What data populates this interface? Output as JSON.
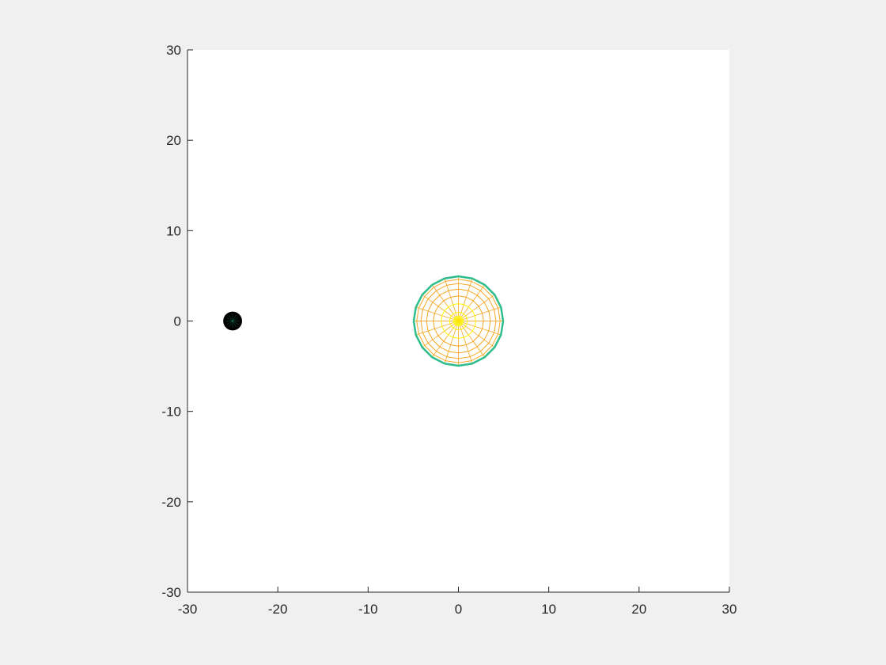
{
  "chart_data": {
    "type": "scatter",
    "title": "",
    "xlabel": "",
    "ylabel": "",
    "xlim": [
      -30,
      30
    ],
    "ylim": [
      -30,
      30
    ],
    "xticks": [
      -30,
      -20,
      -10,
      0,
      10,
      20,
      30
    ],
    "yticks": [
      -30,
      -20,
      -10,
      0,
      10,
      20,
      30
    ],
    "xtick_labels": [
      "-30",
      "-20",
      "-10",
      "0",
      "10",
      "20",
      "30"
    ],
    "ytick_labels": [
      "-30",
      "-20",
      "-10",
      "0",
      "10",
      "20",
      "30"
    ],
    "grid": false,
    "objects": [
      {
        "kind": "mesh-sphere",
        "center": [
          0,
          0
        ],
        "radius": 5,
        "rings": 8,
        "meridians": 20,
        "edge_colors": [
          "#ffff00",
          "#f5a623",
          "#2ebd8c"
        ]
      },
      {
        "kind": "filled-sphere",
        "center": [
          -25,
          0
        ],
        "radius": 1,
        "fill_color": "#000000",
        "edge_color": "#1a9e7a"
      }
    ]
  },
  "colors": {
    "figure_background": "#f0f0f0",
    "axes_background": "#ffffff",
    "axis_color": "#262626"
  }
}
